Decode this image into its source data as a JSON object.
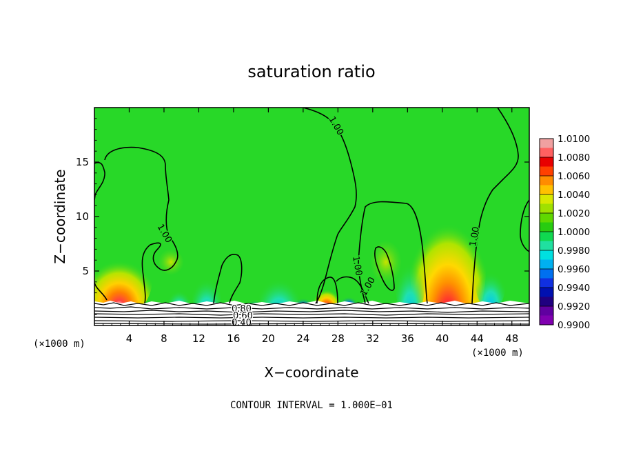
{
  "chart_data": {
    "type": "heatmap",
    "title": "saturation ratio",
    "xlabel": "X−coordinate",
    "ylabel": "Z−coordinate",
    "x_unit_left": "(×1000 m)",
    "x_unit_right": "(×1000 m)",
    "xlim": [
      0,
      50
    ],
    "ylim": [
      0,
      20
    ],
    "xticks": [
      4,
      8,
      12,
      16,
      20,
      24,
      28,
      32,
      36,
      40,
      44,
      48
    ],
    "xtick_labels": [
      "4",
      "8",
      "12",
      "16",
      "20",
      "24",
      "28",
      "32",
      "36",
      "40",
      "44",
      "48"
    ],
    "yticks": [
      5,
      10,
      15
    ],
    "ytick_labels": [
      "5",
      "10",
      "15"
    ],
    "colorbar": {
      "labels": [
        "1.0100",
        "1.0080",
        "1.0060",
        "1.0040",
        "1.0020",
        "1.0000",
        "0.9980",
        "0.9960",
        "0.9940",
        "0.9920",
        "0.9900"
      ],
      "values": [
        1.01,
        1.008,
        1.006,
        1.004,
        1.002,
        1.0,
        0.998,
        0.996,
        0.994,
        0.992,
        0.99
      ],
      "colors": [
        "#f0a0a0",
        "#ff6060",
        "#e80000",
        "#ff4000",
        "#ff8c00",
        "#ffc000",
        "#d8e800",
        "#a0e000",
        "#60d800",
        "#28cc10",
        "#10d850",
        "#20e0a0",
        "#00e0e0",
        "#00b0f0",
        "#0070f0",
        "#1030e0",
        "#0010b0",
        "#200080",
        "#6000a0",
        "#8000b0"
      ]
    },
    "background_color": "#28d828",
    "contour_labels": [
      "1.00",
      "1.00",
      "1.00",
      "1.00",
      "1.00",
      "0.80",
      "0.60",
      "0.40"
    ],
    "footer": "CONTOUR INTERVAL = 1.000E−01"
  }
}
